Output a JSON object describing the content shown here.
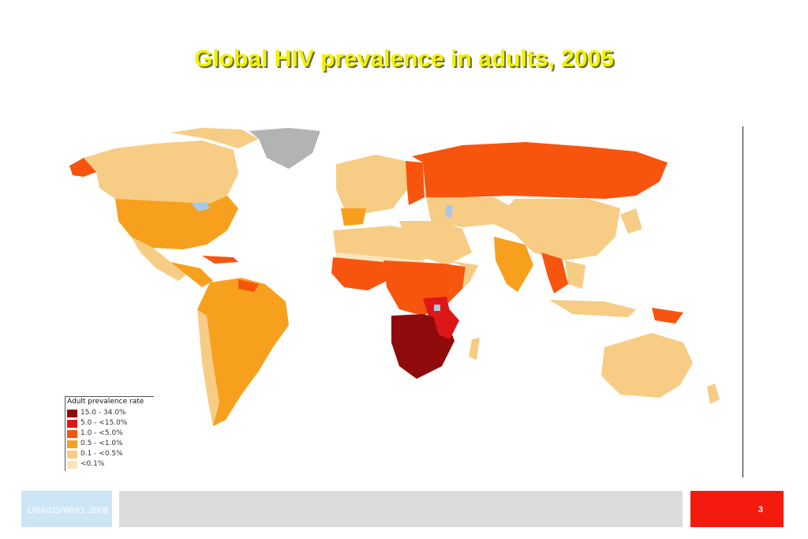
{
  "slide": {
    "title": "Global HIV prevalence in adults, 2005",
    "source": "UNAIDS/WHO, 2006",
    "page_number": "3"
  },
  "map": {
    "colors": {
      "ocean": "#ffffff",
      "lake": "#a9c7ea",
      "no_data": "#b3b3b3"
    },
    "legend": {
      "title": "Adult prevalence rate",
      "classes": [
        {
          "label": "15.0 - 34.0%",
          "color": "#8f0a0a"
        },
        {
          "label": "5.0 - <15.0%",
          "color": "#dd1717"
        },
        {
          "label": "1.0 - <5.0%",
          "color": "#f7550d"
        },
        {
          "label": "0.5 - <1.0%",
          "color": "#f7a01e"
        },
        {
          "label": "0.1 - <0.5%",
          "color": "#f7cc84"
        },
        {
          "label": "<0.1%",
          "color": "#fbe3bd"
        }
      ]
    }
  },
  "colors": {
    "title": "#f2f200",
    "source_bar": "#cde6f6",
    "footer_bar": "#dcdcdc",
    "page_bar": "#f51a0e"
  }
}
